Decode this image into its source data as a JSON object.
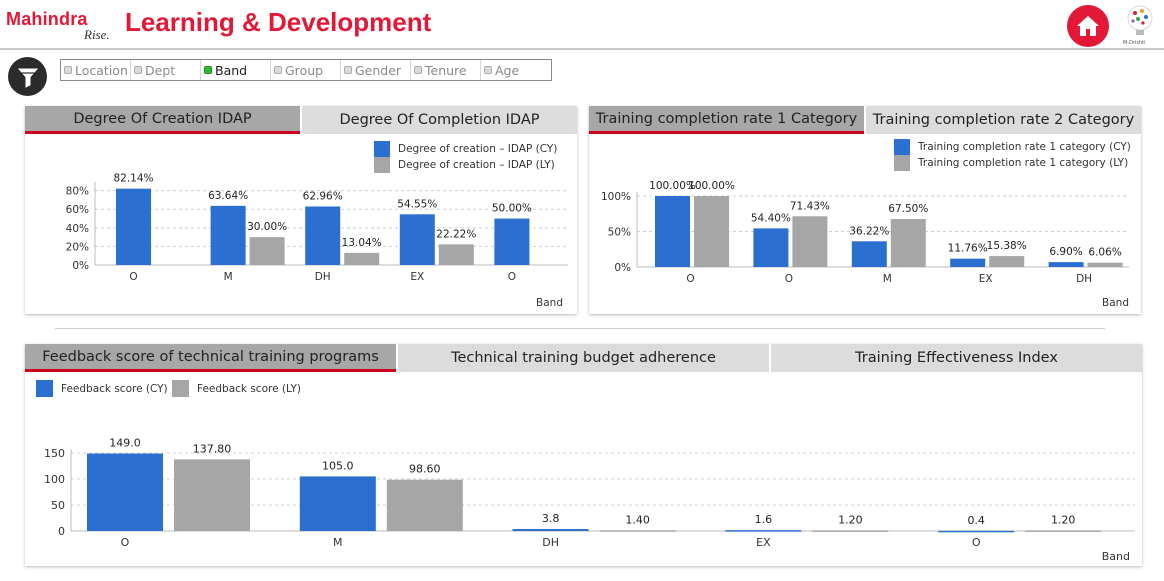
{
  "header": {
    "brand": "Mahindra",
    "brand_sub": "Rise.",
    "title": "Learning & Development",
    "drishti_label": "M-Drishti"
  },
  "filters": {
    "items": [
      {
        "label": "Location",
        "active": false
      },
      {
        "label": "Dept",
        "active": false
      },
      {
        "label": "Band",
        "active": true
      },
      {
        "label": "Group",
        "active": false
      },
      {
        "label": "Gender",
        "active": false
      },
      {
        "label": "Tenure",
        "active": false
      },
      {
        "label": "Age",
        "active": false
      }
    ]
  },
  "colors": {
    "accent": "#e31837",
    "cy": "#2b6fd0",
    "ly": "#a6a6a6",
    "tab_underline": "#d0021b"
  },
  "panels": [
    {
      "tabs": [
        "Degree Of Creation IDAP",
        "Degree Of Completion IDAP"
      ],
      "active_tab": 0
    },
    {
      "tabs": [
        "Training completion rate 1 Category",
        "Training completion rate 2 Category"
      ],
      "active_tab": 0
    },
    {
      "tabs": [
        "Feedback score of technical training programs",
        "Technical training budget adherence",
        "Training Effectiveness Index"
      ],
      "active_tab": 0
    }
  ],
  "chart_data": [
    {
      "type": "bar",
      "categories": [
        "O",
        "M",
        "DH",
        "EX",
        "O"
      ],
      "series": [
        {
          "name": "Degree of creation – IDAP (CY)",
          "values": [
            82.14,
            63.64,
            62.96,
            54.55,
            50.0
          ],
          "labels": [
            "82.14%",
            "63.64%",
            "62.96%",
            "54.55%",
            "50.00%"
          ]
        },
        {
          "name": "Degree of creation – IDAP (LY)",
          "values": [
            null,
            30.0,
            13.04,
            22.22,
            null
          ],
          "labels": [
            "",
            "30.00%",
            "13.04%",
            "22.22%",
            ""
          ]
        }
      ],
      "yticks": [
        "0%",
        "20%",
        "40%",
        "60%",
        "80%"
      ],
      "ylim": [
        0,
        85
      ],
      "xlabel": "Band",
      "legend_position": "top-right",
      "grid": true
    },
    {
      "type": "bar",
      "categories": [
        "O",
        "O",
        "M",
        "EX",
        "DH"
      ],
      "series": [
        {
          "name": "Training completion rate 1 category (CY)",
          "values": [
            100.0,
            54.4,
            36.22,
            11.76,
            6.9
          ],
          "labels": [
            "100.00%",
            "54.40%",
            "36.22%",
            "11.76%",
            "6.90%"
          ]
        },
        {
          "name": "Training completion rate 1 category (LY)",
          "values": [
            100.0,
            71.43,
            67.5,
            15.38,
            6.06
          ],
          "labels": [
            "100.00%",
            "71.43%",
            "67.50%",
            "15.38%",
            "6.06%"
          ]
        }
      ],
      "yticks": [
        "0%",
        "50%",
        "100%"
      ],
      "ylim": [
        0,
        100
      ],
      "xlabel": "Band",
      "legend_position": "top-right",
      "grid": true
    },
    {
      "type": "bar",
      "categories": [
        "O",
        "M",
        "DH",
        "EX",
        "O"
      ],
      "series": [
        {
          "name": "Feedback score (CY)",
          "values": [
            149.0,
            105.0,
            3.8,
            1.6,
            0.4
          ],
          "labels": [
            "149.0",
            "105.0",
            "3.8",
            "1.6",
            "0.4"
          ]
        },
        {
          "name": "Feedback score (LY)",
          "values": [
            137.8,
            98.6,
            1.4,
            1.2,
            1.2
          ],
          "labels": [
            "137.80",
            "98.60",
            "1.40",
            "1.20",
            "1.20"
          ]
        }
      ],
      "yticks": [
        "0",
        "50",
        "100",
        "150"
      ],
      "ylim": [
        0,
        150
      ],
      "xlabel": "Band",
      "legend_position": "top-left",
      "grid": true
    }
  ]
}
